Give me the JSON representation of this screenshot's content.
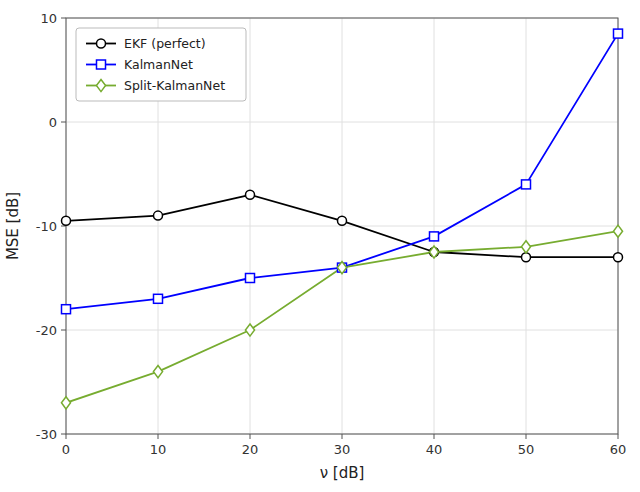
{
  "chart_data": {
    "type": "line",
    "x_label": "ν [dB]",
    "y_label": "MSE [dB]",
    "x": [
      0,
      10,
      20,
      30,
      40,
      50,
      60
    ],
    "xlim": [
      0,
      60
    ],
    "xticks": [
      0,
      10,
      20,
      30,
      40,
      50,
      60
    ],
    "ylim": [
      -30,
      10
    ],
    "yticks": [
      -30,
      -20,
      -10,
      0,
      10
    ],
    "grid": true,
    "legend": "upper left",
    "series": [
      {
        "name": "EKF (perfect)",
        "color": "#000000",
        "marker": "circle",
        "values": [
          -9.5,
          -9.0,
          -7.0,
          -9.5,
          -12.5,
          -13.0,
          -13.0
        ]
      },
      {
        "name": "KalmanNet",
        "color": "#0000ff",
        "marker": "square",
        "values": [
          -18.0,
          -17.0,
          -15.0,
          -14.0,
          -11.0,
          -6.0,
          8.5
        ]
      },
      {
        "name": "Split-KalmanNet",
        "color": "#77ac30",
        "marker": "diamond",
        "values": [
          -27.0,
          -24.0,
          -20.0,
          -14.0,
          -12.5,
          -12.0,
          -10.5
        ]
      }
    ]
  }
}
